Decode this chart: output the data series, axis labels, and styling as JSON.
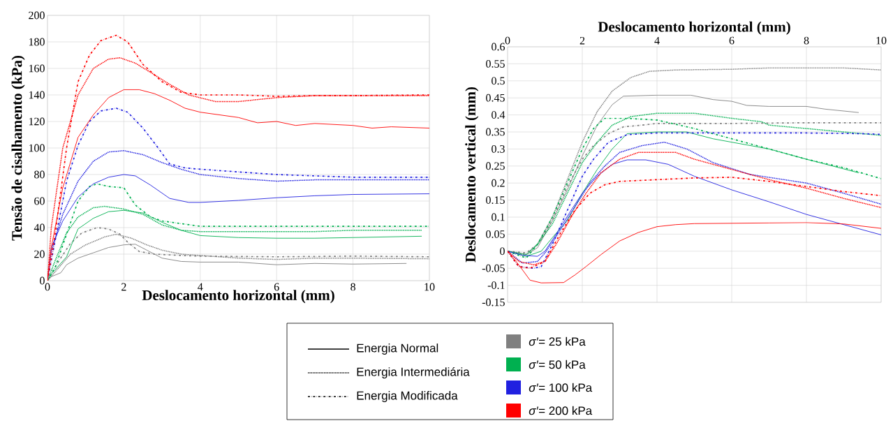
{
  "chart_data": [
    {
      "type": "line",
      "xlabel": "Deslocamento horizontal (mm)",
      "ylabel": "Tensão de cisalhamento (kPa)",
      "xlim": [
        0,
        10
      ],
      "xticks": [
        0,
        2,
        4,
        6,
        8,
        10
      ],
      "ylim": [
        0,
        200
      ],
      "yticks": [
        0,
        20,
        40,
        60,
        80,
        100,
        120,
        140,
        160,
        180,
        200
      ],
      "grid": true,
      "series": [
        {
          "color": "#808080",
          "line_style": "solid",
          "x": [
            0,
            0.1,
            0.35,
            0.5,
            0.8,
            1.2,
            1.6,
            2.0,
            2.3,
            2.6,
            3.0,
            3.5,
            4,
            5,
            6,
            7,
            8,
            9.4
          ],
          "values": [
            0,
            3,
            6,
            12,
            17,
            21,
            25,
            27,
            27.5,
            23,
            17,
            14.5,
            14,
            14,
            12,
            13,
            12.5,
            13
          ]
        },
        {
          "color": "#808080",
          "line_style": "dotted",
          "x": [
            0,
            0.3,
            0.6,
            1.0,
            1.5,
            1.8,
            2.2,
            2.6,
            3.0,
            3.5,
            4,
            5,
            6,
            7,
            8,
            10
          ],
          "values": [
            0,
            10,
            20,
            27,
            33,
            35,
            32,
            27,
            23,
            20,
            19,
            17,
            16,
            17,
            17,
            16.5
          ]
        },
        {
          "color": "#808080",
          "line_style": "dashdot",
          "x": [
            0,
            0.3,
            0.6,
            0.9,
            1.3,
            1.6,
            1.9,
            2.1,
            2.4,
            2.8,
            3.5,
            4,
            6,
            8,
            10
          ],
          "values": [
            0,
            15,
            28,
            36,
            40,
            39,
            35,
            29,
            22,
            20,
            19,
            18.5,
            18,
            18.5,
            18
          ]
        },
        {
          "color": "#00b050",
          "line_style": "solid",
          "x": [
            0,
            0.1,
            0.5,
            0.8,
            1.2,
            1.6,
            2.0,
            2.5,
            3.0,
            3.5,
            4,
            5,
            6,
            7,
            8,
            9.8
          ],
          "values": [
            0,
            5,
            18,
            39,
            47,
            52,
            53,
            51,
            44,
            38,
            34,
            32.5,
            32,
            32,
            32.5,
            33.5
          ]
        },
        {
          "color": "#00b050",
          "line_style": "dotted",
          "x": [
            0,
            0.2,
            0.5,
            0.8,
            1.2,
            1.5,
            2.0,
            2.5,
            3,
            3.5,
            4,
            6,
            7,
            8,
            9.8
          ],
          "values": [
            0,
            15,
            36,
            48,
            55,
            56,
            54,
            50,
            42,
            38,
            37,
            37,
            37,
            38,
            38
          ]
        },
        {
          "color": "#00b050",
          "line_style": "dashdot",
          "x": [
            0,
            0.2,
            0.5,
            0.8,
            1.1,
            1.3,
            1.6,
            2.0,
            2.3,
            2.7,
            3.0,
            3.5,
            4,
            6,
            8,
            10
          ],
          "values": [
            0,
            10,
            35,
            60,
            71,
            73,
            71,
            70,
            57,
            48,
            45,
            43,
            41,
            41,
            41,
            41
          ]
        },
        {
          "color": "#2020e0",
          "line_style": "solid",
          "x": [
            0,
            0.1,
            0.4,
            0.8,
            1.2,
            1.6,
            2.0,
            2.3,
            2.7,
            3.2,
            3.7,
            4,
            5,
            6,
            7,
            8,
            10
          ],
          "values": [
            0,
            25,
            45,
            63,
            73,
            78,
            80,
            79,
            72,
            62,
            59,
            59,
            60.5,
            62.5,
            64,
            65,
            65.5
          ]
        },
        {
          "color": "#2020e0",
          "line_style": "dotted",
          "x": [
            0,
            0.1,
            0.4,
            0.8,
            1.2,
            1.6,
            2.0,
            2.5,
            3.0,
            3.5,
            4,
            5,
            6,
            7,
            8,
            10
          ],
          "values": [
            0,
            22,
            50,
            75,
            90,
            97,
            98,
            95,
            89,
            84,
            80,
            77,
            75,
            76,
            76,
            76
          ]
        },
        {
          "color": "#2020e0",
          "line_style": "dashdot",
          "x": [
            0,
            0.2,
            0.5,
            0.8,
            1.1,
            1.4,
            1.8,
            2.1,
            2.5,
            2.9,
            3.2,
            3.6,
            4,
            5,
            6,
            7,
            8,
            10
          ],
          "values": [
            0,
            30,
            75,
            102,
            120,
            128,
            130,
            127,
            115,
            100,
            88,
            85,
            84,
            82,
            80,
            79,
            78,
            78
          ]
        },
        {
          "color": "#ff0000",
          "line_style": "solid",
          "x": [
            0,
            0.1,
            0.4,
            0.8,
            1.2,
            1.6,
            2.0,
            2.4,
            2.8,
            3.2,
            3.6,
            4,
            5,
            5.5,
            6,
            6.5,
            7,
            8,
            8.5,
            9,
            10
          ],
          "values": [
            0,
            25,
            70,
            108,
            125,
            138,
            144,
            144,
            141,
            136,
            130,
            127,
            123,
            119,
            120,
            117,
            118.5,
            117,
            115,
            116,
            115
          ]
        },
        {
          "color": "#ff0000",
          "line_style": "dotted",
          "x": [
            0,
            0.1,
            0.4,
            0.8,
            1.2,
            1.6,
            1.9,
            2.3,
            2.7,
            3.2,
            3.7,
            4.4,
            5,
            6,
            7,
            8,
            10
          ],
          "values": [
            0,
            40,
            100,
            140,
            160,
            167,
            168,
            164,
            157,
            148,
            140,
            135,
            135,
            138,
            139.5,
            139.5,
            139.5
          ]
        },
        {
          "color": "#ff0000",
          "line_style": "dashdot",
          "x": [
            0,
            0.2,
            0.5,
            0.8,
            1.1,
            1.4,
            1.8,
            2.1,
            2.5,
            3.0,
            3.5,
            4,
            5,
            6,
            7,
            8,
            10
          ],
          "values": [
            0,
            35,
            100,
            150,
            170,
            181,
            185,
            180,
            163,
            150,
            142,
            140,
            140,
            139,
            139.5,
            139.5,
            140
          ]
        }
      ]
    },
    {
      "type": "line",
      "xlabel": "Deslocamento horizontal (mm)",
      "ylabel": "Deslocamento vertical (mm)",
      "xlim": [
        0,
        10
      ],
      "xticks": [
        0,
        2,
        4,
        6,
        8,
        10
      ],
      "ylim": [
        -0.15,
        0.6
      ],
      "yticks": [
        -0.15,
        -0.1,
        -0.05,
        0,
        0.05,
        0.1,
        0.15,
        0.2,
        0.25,
        0.3,
        0.35,
        0.4,
        0.45,
        0.5,
        0.55,
        0.6
      ],
      "grid": true,
      "series": [
        {
          "color": "#808080",
          "line_style": "solid",
          "x": [
            0,
            0.5,
            0.8,
            1.2,
            1.6,
            2.0,
            2.4,
            2.8,
            3.1,
            4,
            4.9,
            5.5,
            6,
            6.4,
            7,
            8,
            8.5,
            9.4
          ],
          "values": [
            0,
            -0.01,
            0.01,
            0.09,
            0.18,
            0.28,
            0.37,
            0.43,
            0.455,
            0.458,
            0.458,
            0.445,
            0.44,
            0.428,
            0.425,
            0.425,
            0.417,
            0.407
          ]
        },
        {
          "color": "#808080",
          "line_style": "dotted",
          "x": [
            0,
            0.5,
            0.8,
            1.2,
            1.6,
            2,
            2.4,
            2.8,
            3.3,
            3.8,
            4.5,
            6,
            7,
            8,
            9,
            10
          ],
          "values": [
            0,
            -0.01,
            0.02,
            0.1,
            0.21,
            0.32,
            0.41,
            0.47,
            0.51,
            0.528,
            0.532,
            0.534,
            0.538,
            0.538,
            0.538,
            0.532
          ]
        },
        {
          "color": "#808080",
          "line_style": "dashdot",
          "x": [
            0,
            0.5,
            0.8,
            1.2,
            1.6,
            2.0,
            2.3,
            2.7,
            3.1,
            3.6,
            4,
            6,
            8,
            10
          ],
          "values": [
            0,
            -0.005,
            0.02,
            0.09,
            0.19,
            0.27,
            0.31,
            0.345,
            0.365,
            0.37,
            0.375,
            0.375,
            0.377,
            0.377
          ]
        },
        {
          "color": "#00b050",
          "line_style": "solid",
          "x": [
            0,
            0.5,
            0.9,
            1.2,
            1.6,
            2.0,
            2.4,
            2.8,
            3.2,
            4,
            4.8,
            5.5,
            6,
            7,
            8,
            9.4
          ],
          "values": [
            0,
            -0.015,
            0.0,
            0.04,
            0.09,
            0.17,
            0.24,
            0.3,
            0.345,
            0.35,
            0.35,
            0.33,
            0.32,
            0.3,
            0.27,
            0.23
          ]
        },
        {
          "color": "#00b050",
          "line_style": "dotted",
          "x": [
            0,
            0.5,
            0.8,
            1.2,
            1.6,
            2,
            2.4,
            2.8,
            3.3,
            4,
            5,
            6,
            6.8,
            7,
            8,
            9,
            10
          ],
          "values": [
            0,
            -0.01,
            0.02,
            0.08,
            0.17,
            0.26,
            0.32,
            0.37,
            0.395,
            0.405,
            0.405,
            0.39,
            0.38,
            0.37,
            0.36,
            0.35,
            0.34
          ]
        },
        {
          "color": "#00b050",
          "line_style": "dashdot",
          "x": [
            0,
            0.5,
            0.8,
            1.2,
            1.6,
            2,
            2.3,
            2.6,
            3.2,
            4,
            5,
            6,
            7,
            8,
            9,
            10
          ],
          "values": [
            0,
            -0.02,
            0.02,
            0.1,
            0.2,
            0.3,
            0.36,
            0.39,
            0.39,
            0.385,
            0.36,
            0.33,
            0.3,
            0.27,
            0.245,
            0.213
          ]
        },
        {
          "color": "#2020e0",
          "line_style": "solid",
          "x": [
            0,
            0.4,
            0.8,
            1.0,
            1.3,
            1.7,
            2.0,
            2.4,
            2.8,
            3.2,
            3.7,
            4.3,
            5,
            6,
            7,
            8,
            9,
            10
          ],
          "values": [
            0,
            -0.012,
            -0.015,
            0.0,
            0.05,
            0.12,
            0.17,
            0.22,
            0.255,
            0.268,
            0.268,
            0.255,
            0.22,
            0.18,
            0.145,
            0.108,
            0.078,
            0.048
          ]
        },
        {
          "color": "#2020e0",
          "line_style": "dotted",
          "x": [
            0,
            0.4,
            0.8,
            1.0,
            1.4,
            1.8,
            2.2,
            2.6,
            3.0,
            3.6,
            4.2,
            4.8,
            5.5,
            6.5,
            8,
            9,
            10
          ],
          "values": [
            0,
            -0.035,
            -0.03,
            -0.005,
            0.06,
            0.13,
            0.2,
            0.25,
            0.29,
            0.31,
            0.32,
            0.3,
            0.26,
            0.225,
            0.2,
            0.17,
            0.138
          ]
        },
        {
          "color": "#2020e0",
          "line_style": "dashdot",
          "x": [
            0,
            0.3,
            0.7,
            0.9,
            1.2,
            1.6,
            2,
            2.3,
            2.7,
            3.2,
            4,
            6,
            8,
            9.5,
            10
          ],
          "values": [
            0,
            -0.045,
            -0.05,
            -0.045,
            0.02,
            0.12,
            0.22,
            0.27,
            0.32,
            0.342,
            0.347,
            0.347,
            0.347,
            0.345,
            0.343
          ]
        },
        {
          "color": "#ff0000",
          "line_style": "solid",
          "x": [
            0,
            0.3,
            0.6,
            0.9,
            1.5,
            1.8,
            2.1,
            2.5,
            3,
            3.5,
            4,
            4.5,
            5,
            6,
            7,
            8,
            9,
            10
          ],
          "values": [
            0,
            -0.04,
            -0.085,
            -0.093,
            -0.092,
            -0.07,
            -0.045,
            -0.01,
            0.03,
            0.055,
            0.072,
            0.078,
            0.081,
            0.082,
            0.083,
            0.084,
            0.08,
            0.067
          ]
        },
        {
          "color": "#ff0000",
          "line_style": "dotted",
          "x": [
            0,
            0.3,
            0.7,
            1,
            1.3,
            1.7,
            2.1,
            2.5,
            3,
            3.5,
            4.5,
            5,
            6,
            7,
            8,
            9,
            10
          ],
          "values": [
            0,
            -0.03,
            -0.04,
            -0.03,
            0.02,
            0.1,
            0.17,
            0.23,
            0.27,
            0.29,
            0.29,
            0.27,
            0.24,
            0.21,
            0.185,
            0.155,
            0.128
          ]
        },
        {
          "color": "#ff0000",
          "line_style": "dashdot",
          "x": [
            0,
            0.3,
            0.6,
            1.0,
            1.4,
            1.8,
            2.2,
            2.6,
            3,
            4,
            5,
            6,
            7,
            8,
            9,
            10
          ],
          "values": [
            0,
            -0.045,
            -0.05,
            -0.03,
            0.05,
            0.12,
            0.17,
            0.195,
            0.205,
            0.21,
            0.215,
            0.217,
            0.205,
            0.19,
            0.175,
            0.163
          ]
        }
      ]
    },
    {
      "type": "other",
      "series": [
        {
          "name": "Energia Normal",
          "line_style": "solid"
        },
        {
          "name": "Energia Intermediária",
          "line_style": "dotted"
        },
        {
          "name": "Energia Modificada",
          "line_style": "dashdot"
        },
        {
          "name": "*σ′*= 25 kPa",
          "color": "#808080"
        },
        {
          "name": "*σ′*= 50 kPa",
          "color": "#00b050"
        },
        {
          "name": "*σ′*= 100 kPa",
          "color": "#2020e0"
        },
        {
          "name": "*σ′*= 200 kPa",
          "color": "#ff0000"
        }
      ]
    }
  ]
}
